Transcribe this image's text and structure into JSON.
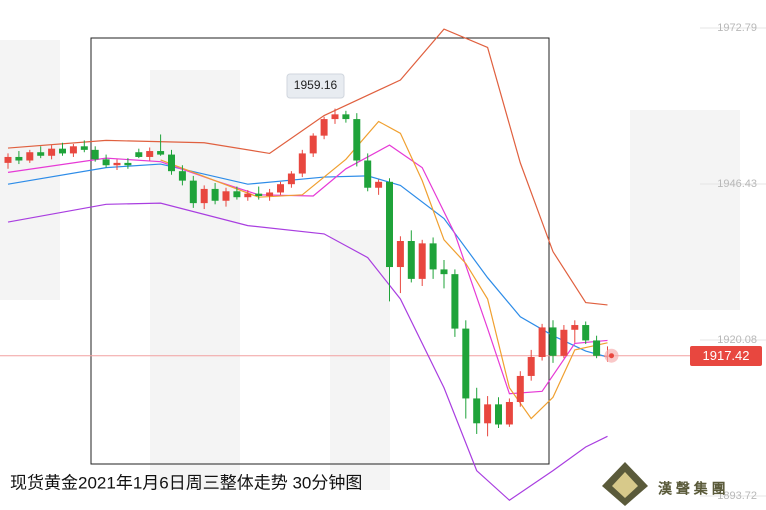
{
  "chart_data": {
    "type": "candlestick",
    "caption": "现货黄金2021年1月6日周三整体走势 30分钟图",
    "logo_text": "漢 聲 集 團",
    "ylim": [
      1891.35,
      1977.52
    ],
    "yticks": [
      1972.79,
      1946.43,
      1920.08,
      1893.72
    ],
    "up_color": "#e8473f",
    "down_color": "#1fa33a",
    "open": [
      1950.0,
      1951.0,
      1950.4,
      1951.8,
      1951.2,
      1952.4,
      1951.6,
      1952.8,
      1952.2,
      1950.6,
      1949.6,
      1950.0,
      1951.8,
      1951.0,
      1952.0,
      1951.4,
      1948.6,
      1947.0,
      1943.2,
      1945.6,
      1943.6,
      1945.2,
      1944.2,
      1944.8,
      1944.4,
      1945.0,
      1946.4,
      1948.2,
      1951.6,
      1954.6,
      1957.4,
      1958.2,
      1957.4,
      1950.4,
      1945.8,
      1946.8,
      1932.4,
      1936.8,
      1930.4,
      1936.4,
      1932.0,
      1931.2,
      1922.0,
      1910.2,
      1906.0,
      1909.2,
      1905.8,
      1909.6,
      1914.0,
      1917.2,
      1922.2,
      1917.4,
      1921.8,
      1922.6,
      1920.0,
      1917.4
    ],
    "high": [
      1951.6,
      1952.0,
      1952.2,
      1952.8,
      1953.0,
      1953.4,
      1953.2,
      1953.8,
      1952.8,
      1951.4,
      1950.6,
      1950.8,
      1952.4,
      1952.6,
      1954.8,
      1952.2,
      1949.6,
      1947.8,
      1946.2,
      1946.6,
      1945.8,
      1946.0,
      1945.4,
      1946.0,
      1945.6,
      1946.8,
      1948.6,
      1952.2,
      1955.0,
      1957.8,
      1959.16,
      1958.8,
      1958.4,
      1951.6,
      1947.2,
      1947.4,
      1937.6,
      1938.6,
      1937.0,
      1937.4,
      1933.6,
      1932.0,
      1923.4,
      1912.0,
      1910.6,
      1910.4,
      1910.2,
      1914.8,
      1918.4,
      1922.8,
      1923.4,
      1922.6,
      1923.4,
      1923.2,
      1920.8,
      1919.0
    ],
    "low": [
      1949.0,
      1949.8,
      1950.0,
      1950.8,
      1950.6,
      1951.2,
      1951.0,
      1951.8,
      1950.2,
      1949.2,
      1948.8,
      1949.0,
      1950.8,
      1950.4,
      1951.2,
      1948.0,
      1946.2,
      1942.4,
      1942.2,
      1943.0,
      1942.6,
      1943.8,
      1943.6,
      1943.8,
      1943.6,
      1944.6,
      1945.8,
      1947.6,
      1951.0,
      1954.0,
      1956.6,
      1956.8,
      1949.4,
      1945.2,
      1944.6,
      1926.6,
      1928.0,
      1929.8,
      1929.2,
      1930.4,
      1928.8,
      1920.6,
      1906.8,
      1904.2,
      1903.8,
      1905.2,
      1905.4,
      1908.8,
      1913.2,
      1916.6,
      1916.2,
      1917.0,
      1919.6,
      1919.4,
      1917.0,
      1916.4
    ],
    "close": [
      1951.0,
      1950.4,
      1951.8,
      1951.2,
      1952.4,
      1951.6,
      1952.8,
      1952.2,
      1950.6,
      1949.6,
      1950.0,
      1949.6,
      1951.0,
      1952.0,
      1951.4,
      1948.6,
      1947.0,
      1943.2,
      1945.6,
      1943.6,
      1945.2,
      1944.2,
      1944.8,
      1944.4,
      1945.0,
      1946.4,
      1948.2,
      1951.6,
      1954.6,
      1957.4,
      1958.2,
      1957.4,
      1950.4,
      1945.8,
      1946.8,
      1932.4,
      1936.8,
      1930.4,
      1936.4,
      1932.0,
      1931.2,
      1922.0,
      1910.2,
      1906.0,
      1909.2,
      1905.8,
      1909.6,
      1914.0,
      1917.2,
      1922.2,
      1917.4,
      1921.8,
      1922.6,
      1920.0,
      1917.4,
      1917.42
    ],
    "lines": [
      {
        "color": "#e0603f",
        "x": [
          0,
          9,
          18,
          24,
          29,
          36,
          40,
          44,
          47,
          50,
          53,
          55
        ],
        "values": [
          1952.5,
          1953.8,
          1953.4,
          1951.6,
          1958.0,
          1964.0,
          1972.6,
          1969.5,
          1950.0,
          1935.0,
          1926.4,
          1926.0
        ]
      },
      {
        "color": "#2d8ce8",
        "x": [
          0,
          9,
          14,
          22,
          29,
          33,
          36,
          40,
          44,
          47,
          50,
          53,
          55
        ],
        "values": [
          1946.4,
          1949.2,
          1949.8,
          1946.4,
          1947.6,
          1947.8,
          1946.2,
          1940.6,
          1930.6,
          1924.0,
          1920.8,
          1918.2,
          1917.2
        ]
      },
      {
        "color": "#a93ee0",
        "x": [
          0,
          9,
          14,
          22,
          29,
          33,
          36,
          40,
          43,
          46,
          50,
          53,
          55
        ],
        "values": [
          1940.0,
          1943.0,
          1943.2,
          1939.4,
          1938.0,
          1934.0,
          1927.0,
          1912.0,
          1898.0,
          1893.0,
          1898.0,
          1902.0,
          1903.8
        ]
      },
      {
        "color": "#e63ad6",
        "x": [
          0,
          9,
          14,
          19,
          23,
          28,
          31,
          35,
          38,
          41,
          44,
          46,
          49,
          52,
          55
        ],
        "values": [
          1948.4,
          1950.8,
          1950.2,
          1947.0,
          1944.6,
          1944.4,
          1949.0,
          1953.0,
          1949.2,
          1938.0,
          1922.0,
          1911.0,
          1911.4,
          1919.5,
          1920.0
        ]
      },
      {
        "color": "#f0a030",
        "x": [
          14,
          19,
          23,
          27,
          31,
          34,
          36,
          38,
          40,
          42,
          44,
          46,
          48,
          50,
          52,
          55
        ],
        "values": [
          1950.5,
          1947.0,
          1944.2,
          1944.6,
          1950.6,
          1957.0,
          1955.0,
          1947.0,
          1937.0,
          1933.0,
          1927.0,
          1912.0,
          1906.8,
          1910.4,
          1918.4,
          1919.6
        ]
      }
    ]
  }
}
